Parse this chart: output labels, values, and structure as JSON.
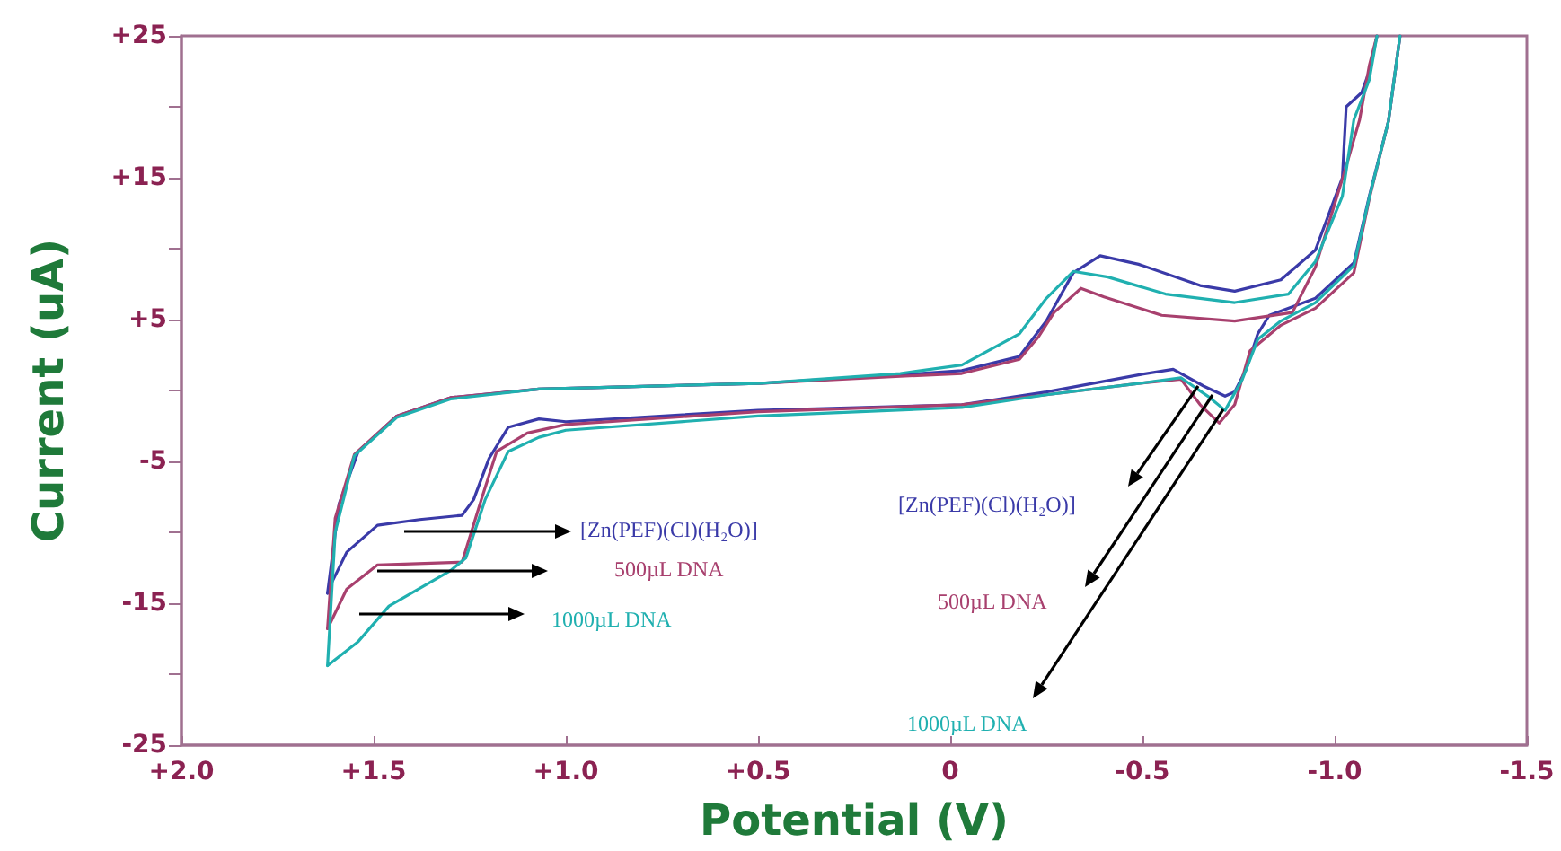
{
  "chart_data": {
    "type": "line",
    "xlabel": "Potential (V)",
    "ylabel": "Current (uA)",
    "xlim": [
      2.0,
      -1.5
    ],
    "xticks": [
      {
        "value": 2.0,
        "label": "+2.0"
      },
      {
        "value": 1.5,
        "label": "+1.5"
      },
      {
        "value": 1.0,
        "label": "+1.0"
      },
      {
        "value": 0.5,
        "label": "+0.5"
      },
      {
        "value": 0,
        "label": "0"
      },
      {
        "value": -0.5,
        "label": "-0.5"
      },
      {
        "value": -1.0,
        "label": "-1.0"
      },
      {
        "value": -1.5,
        "label": "-1.5"
      }
    ],
    "ylim": [
      -25,
      25
    ],
    "yticks": [
      {
        "value": -25,
        "label": "-25"
      },
      {
        "value": -20,
        "label": null
      },
      {
        "value": -15,
        "label": "-15"
      },
      {
        "value": -10,
        "label": null
      },
      {
        "value": -5,
        "label": "-5"
      },
      {
        "value": 0,
        "label": null
      },
      {
        "value": 5,
        "label": "+5"
      },
      {
        "value": 10,
        "label": null
      },
      {
        "value": 15,
        "label": "+15"
      },
      {
        "value": 20,
        "label": null
      },
      {
        "value": 25,
        "label": "+25"
      }
    ],
    "grid": false,
    "legend": false,
    "marker": "none",
    "line_style": "solid",
    "series": [
      {
        "name": "[Zn(PEF)(Cl)(H₂O)]",
        "color": "#3a3aa8",
        "x": [
          1.62,
          1.59,
          1.54,
          1.44,
          1.3,
          1.07,
          0.5,
          0.13,
          -0.03,
          -0.18,
          -0.25,
          -0.32,
          -0.39,
          -0.49,
          -0.65,
          -0.74,
          -0.86,
          -0.95,
          -1.02,
          -1.03,
          -1.07,
          -1.09,
          -1.11
        ],
        "values": [
          -14.3,
          -8.0,
          -4.3,
          -1.8,
          -0.5,
          0.1,
          0.5,
          1.1,
          1.4,
          2.4,
          4.9,
          8.3,
          9.5,
          8.9,
          7.4,
          7.0,
          7.8,
          9.9,
          15,
          20,
          21,
          22.5,
          25
        ]
      },
      {
        "color": "#3a3aa8",
        "x": [
          -1.17,
          -1.14,
          -1.09,
          -1.05,
          -0.95,
          -0.83,
          -0.8,
          -0.77,
          -0.74,
          -0.715,
          -0.66,
          -0.58,
          -0.49,
          -0.25,
          -0.03,
          0.5,
          1.0,
          1.07,
          1.15,
          1.2,
          1.24,
          1.27,
          1.38,
          1.49,
          1.57,
          1.61,
          1.62
        ],
        "values": [
          25,
          19,
          13.7,
          9,
          6.5,
          5.3,
          4.0,
          1.5,
          -0.1,
          -0.4,
          0.3,
          1.5,
          1.1,
          -0.1,
          -1.0,
          -1.4,
          -2.2,
          -2.0,
          -2.6,
          -4.8,
          -7.7,
          -8.8,
          -9.1,
          -9.5,
          -11.4,
          -13.6,
          -14.3
        ]
      },
      {
        "name": "500µL DNA",
        "color": "#a8406e",
        "x": [
          1.62,
          1.6,
          1.55,
          1.44,
          1.3,
          1.07,
          0.5,
          0.13,
          -0.03,
          -0.18,
          -0.23,
          -0.27,
          -0.34,
          -0.4,
          -0.55,
          -0.74,
          -0.89,
          -0.95,
          -1.03,
          -1.065,
          -1.09,
          -1.11
        ],
        "values": [
          -16.8,
          -9,
          -4.5,
          -1.8,
          -0.5,
          0.1,
          0.5,
          1.0,
          1.2,
          2.2,
          3.8,
          5.5,
          7.2,
          6.6,
          5.3,
          4.9,
          5.5,
          8.7,
          15.8,
          19.1,
          22.9,
          25
        ]
      },
      {
        "color": "#a8406e",
        "x": [
          -1.17,
          -1.14,
          -1.09,
          -1.05,
          -0.95,
          -0.86,
          -0.78,
          -0.74,
          -0.7,
          -0.65,
          -0.6,
          -0.49,
          -0.25,
          -0.03,
          0.5,
          1.0,
          1.1,
          1.18,
          1.22,
          1.27,
          1.49,
          1.57,
          1.62
        ],
        "values": [
          25,
          19,
          13.5,
          8.3,
          5.8,
          4.6,
          2.8,
          -1.0,
          -2.3,
          -1.0,
          0.8,
          0.5,
          -0.3,
          -1.0,
          -1.5,
          -2.4,
          -3.0,
          -4.3,
          -7.7,
          -12.1,
          -12.3,
          -14,
          -16.8
        ]
      },
      {
        "name": "1000µL DNA",
        "color": "#20b0b0",
        "x": [
          1.62,
          1.6,
          1.55,
          1.44,
          1.3,
          1.07,
          0.5,
          0.13,
          -0.03,
          -0.18,
          -0.25,
          -0.32,
          -0.41,
          -0.56,
          -0.74,
          -0.88,
          -0.95,
          -1.02,
          -1.05,
          -1.09,
          -1.11
        ],
        "values": [
          -19.4,
          -10,
          -4.6,
          -1.9,
          -0.6,
          0.1,
          0.5,
          1.2,
          1.8,
          4.0,
          6.5,
          8.4,
          8.0,
          6.8,
          6.2,
          6.8,
          9.1,
          13.7,
          19.1,
          21.9,
          25
        ]
      },
      {
        "color": "#20b0b0",
        "x": [
          -1.17,
          -1.14,
          -1.09,
          -1.05,
          -0.95,
          -0.86,
          -0.8,
          -0.76,
          -0.715,
          -0.67,
          -0.6,
          -0.49,
          -0.25,
          -0.03,
          0.5,
          1.0,
          1.07,
          1.15,
          1.21,
          1.26,
          1.3,
          1.46,
          1.54,
          1.62
        ],
        "values": [
          25,
          19,
          13.6,
          8.8,
          6.2,
          4.9,
          3.6,
          0.8,
          -1.4,
          -0.4,
          0.9,
          0.5,
          -0.3,
          -1.2,
          -1.8,
          -2.8,
          -3.3,
          -4.3,
          -7.7,
          -11.8,
          -12.7,
          -15.2,
          -17.7,
          -19.4
        ]
      }
    ]
  }
}
